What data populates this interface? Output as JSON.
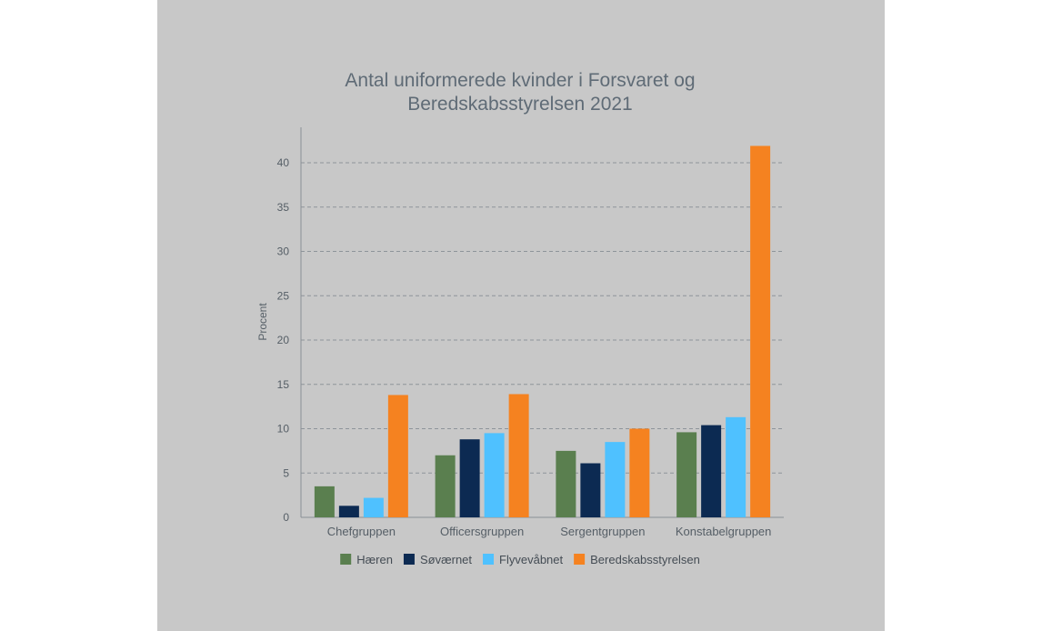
{
  "chart_data": {
    "type": "bar",
    "title_lines": [
      "Antal uniformerede kvinder i Forsvaret og",
      "Beredskabsstyrelsen 2021"
    ],
    "xlabel": "",
    "ylabel": "Procent",
    "ylim": [
      0,
      44
    ],
    "yticks": [
      0,
      5,
      10,
      15,
      20,
      25,
      30,
      35,
      40
    ],
    "grid": true,
    "legend_position": "bottom",
    "categories": [
      "Chefgruppen",
      "Officersgruppen",
      "Sergentgruppen",
      "Konstabelgruppen"
    ],
    "series": [
      {
        "name": "Hæren",
        "color": "#5a7f4f",
        "values": [
          3.5,
          7.0,
          7.5,
          9.6
        ]
      },
      {
        "name": "Søværnet",
        "color": "#0c2a52",
        "values": [
          1.3,
          8.8,
          6.1,
          10.4
        ]
      },
      {
        "name": "Flyvevåbnet",
        "color": "#4fc1ff",
        "values": [
          2.2,
          9.5,
          8.5,
          11.3
        ]
      },
      {
        "name": "Beredskabsstyrelsen",
        "color": "#f58220",
        "values": [
          13.8,
          13.9,
          10.0,
          41.9
        ]
      }
    ]
  }
}
